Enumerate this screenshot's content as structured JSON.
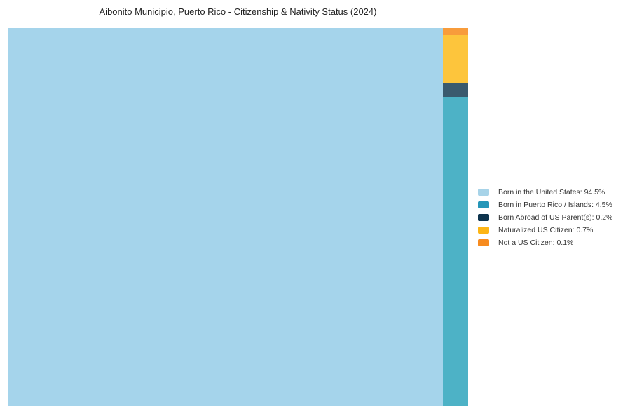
{
  "chart_data": {
    "type": "treemap",
    "title": "Aibonito Municipio, Puerto Rico - Citizenship & Nativity Status (2024)",
    "background_color": "#FFFFFF",
    "title_color": "#222222",
    "legend_text_color": "#333333",
    "items": [
      {
        "id": "born-in-us",
        "label": "Born in the United States",
        "value": 94.5,
        "legend_color": "#A7D3E8",
        "tile_color": "#A5D4EB"
      },
      {
        "id": "born-in-pr-islands",
        "label": "Born in Puerto Rico / Islands",
        "value": 4.5,
        "legend_color": "#2596B8",
        "tile_color": "#4DB2C6"
      },
      {
        "id": "born-abroad-us-parents",
        "label": "Born Abroad of US Parent(s)",
        "value": 0.2,
        "legend_color": "#0E344E",
        "tile_color": "#3A5A6E"
      },
      {
        "id": "naturalized-us-citizen",
        "label": "Naturalized US Citizen",
        "value": 0.7,
        "legend_color": "#FDB515",
        "tile_color": "#FDC53C"
      },
      {
        "id": "not-us-citizen",
        "label": "Not a US Citizen",
        "value": 0.1,
        "legend_color": "#F78B1F",
        "tile_color": "#F89C3B"
      }
    ],
    "layout": {
      "main_item": "born-in-us",
      "column_order_top_to_bottom": [
        "not-us-citizen",
        "naturalized-us-citizen",
        "born-abroad-us-parents",
        "born-in-pr-islands"
      ],
      "legend_position": "right",
      "value_suffix": "%"
    }
  }
}
